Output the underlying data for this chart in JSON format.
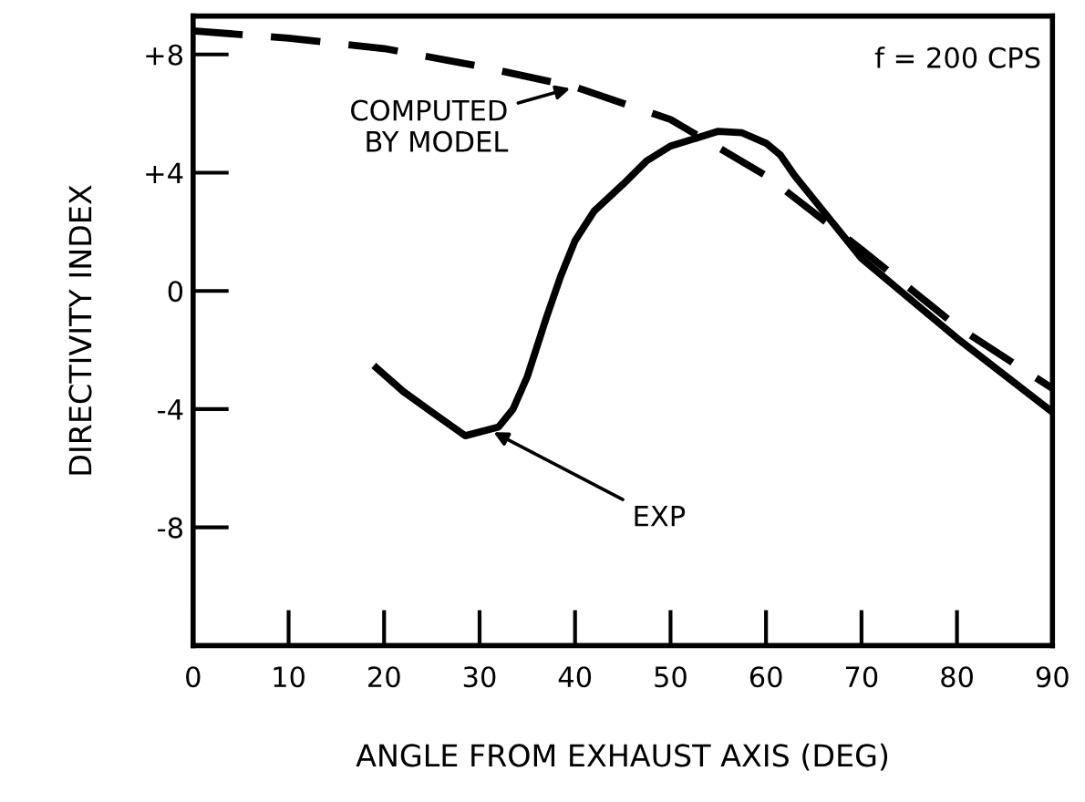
{
  "chart_data": {
    "type": "line",
    "xlabel": "ANGLE FROM EXHAUST AXIS (DEG)",
    "ylabel": "DIRECTIVITY INDEX",
    "xlim": [
      0,
      90
    ],
    "ylim": [
      -12,
      9.3
    ],
    "xticks": [
      0,
      10,
      20,
      30,
      40,
      50,
      60,
      70,
      80,
      90
    ],
    "yticks": [
      {
        "value": 8,
        "label": "+8"
      },
      {
        "value": 4,
        "label": "+4"
      },
      0,
      {
        "value": -4,
        "label": "-4"
      },
      {
        "value": -8,
        "label": "-8"
      }
    ],
    "grid": false,
    "legend": false,
    "marker": "none",
    "series": [
      {
        "color": "#000000",
        "line_style": "dashed",
        "x": [
          0,
          10,
          20,
          30,
          40,
          50,
          60,
          70,
          80,
          90
        ],
        "values": [
          8.8,
          8.55,
          8.2,
          7.6,
          6.9,
          5.8,
          3.9,
          1.4,
          -1.2,
          -3.3
        ]
      },
      {
        "color": "#000000",
        "line_style": "solid",
        "x": [
          19.2,
          22,
          25,
          28.5,
          32,
          33.5,
          35,
          37,
          38.5,
          40,
          42,
          45,
          47.5,
          50,
          55,
          57.5,
          60,
          61.5,
          63,
          65,
          67,
          70,
          80,
          90
        ],
        "values": [
          -2.6,
          -3.4,
          -4.1,
          -4.9,
          -4.6,
          -4.0,
          -2.9,
          -0.9,
          0.5,
          1.7,
          2.7,
          3.6,
          4.4,
          4.9,
          5.4,
          5.35,
          5.0,
          4.6,
          3.9,
          3.1,
          2.3,
          1.1,
          -1.6,
          -4.1
        ]
      }
    ],
    "annotations": [
      "f = 200 CPS",
      {
        "text": "COMPUTED\nBY MODEL",
        "x": 40,
        "y": 6.9
      },
      {
        "text": "EXP",
        "x": 31,
        "y": -4.7
      }
    ]
  }
}
